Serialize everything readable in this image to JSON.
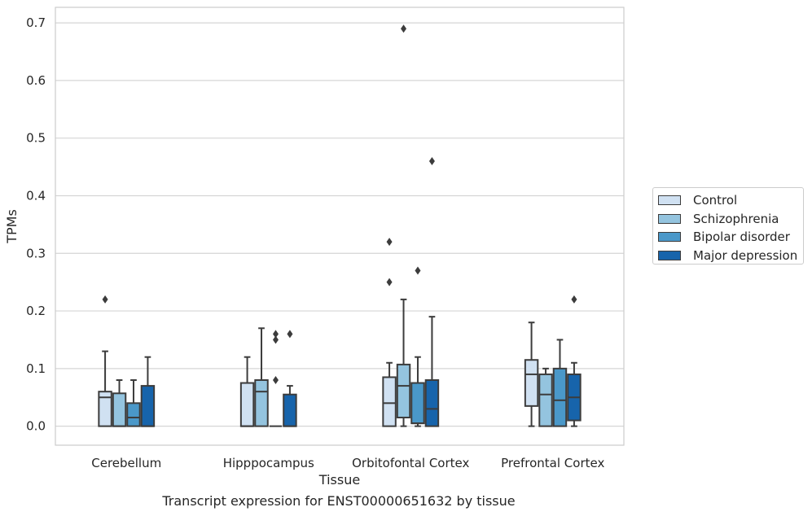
{
  "chart_data": {
    "type": "box",
    "title": "",
    "xlabel": "Tissue",
    "ylabel": "TPMs",
    "caption": "Transcript expression for ENST00000651632 by tissue",
    "ylim": [
      -0.033,
      0.727
    ],
    "yticks": [
      0.0,
      0.1,
      0.2,
      0.3,
      0.4,
      0.5,
      0.6,
      0.7
    ],
    "ytick_labels": [
      "0.0",
      "0.1",
      "0.2",
      "0.3",
      "0.4",
      "0.5",
      "0.6",
      "0.7"
    ],
    "grid": "horizontal",
    "legend_position": "right",
    "categories": [
      "Cerebellum",
      "Hipppocampus",
      "Orbitofontal Cortex",
      "Prefrontal Cortex"
    ],
    "series": [
      {
        "name": "Control",
        "color": "#d0e1f2",
        "boxes": [
          {
            "whislo": 0.0,
            "q1": 0.0,
            "med": 0.05,
            "q3": 0.06,
            "whishi": 0.13,
            "fliers": [
              0.22
            ]
          },
          {
            "whislo": 0.0,
            "q1": 0.0,
            "med": 0.0,
            "q3": 0.075,
            "whishi": 0.12,
            "fliers": []
          },
          {
            "whislo": 0.0,
            "q1": 0.0,
            "med": 0.04,
            "q3": 0.085,
            "whishi": 0.11,
            "fliers": [
              0.25,
              0.32
            ]
          },
          {
            "whislo": 0.0,
            "q1": 0.035,
            "med": 0.09,
            "q3": 0.115,
            "whishi": 0.18,
            "fliers": []
          }
        ]
      },
      {
        "name": "Schizophrenia",
        "color": "#94c4df",
        "boxes": [
          {
            "whislo": 0.0,
            "q1": 0.0,
            "med": 0.0,
            "q3": 0.057,
            "whishi": 0.08,
            "fliers": []
          },
          {
            "whislo": 0.0,
            "q1": 0.0,
            "med": 0.06,
            "q3": 0.08,
            "whishi": 0.17,
            "fliers": []
          },
          {
            "whislo": 0.0,
            "q1": 0.015,
            "med": 0.07,
            "q3": 0.107,
            "whishi": 0.22,
            "fliers": [
              0.69
            ]
          },
          {
            "whislo": 0.0,
            "q1": 0.0,
            "med": 0.055,
            "q3": 0.09,
            "whishi": 0.1,
            "fliers": []
          }
        ]
      },
      {
        "name": "Bipolar disorder",
        "color": "#4a98c9",
        "boxes": [
          {
            "whislo": 0.0,
            "q1": 0.0,
            "med": 0.015,
            "q3": 0.04,
            "whishi": 0.08,
            "fliers": []
          },
          {
            "whislo": 0.0,
            "q1": 0.0,
            "med": 0.0,
            "q3": 0.0,
            "whishi": 0.0,
            "fliers": [
              0.08,
              0.15,
              0.16
            ]
          },
          {
            "whislo": 0.0,
            "q1": 0.005,
            "med": 0.005,
            "q3": 0.075,
            "whishi": 0.12,
            "fliers": [
              0.27
            ]
          },
          {
            "whislo": 0.0,
            "q1": 0.0,
            "med": 0.045,
            "q3": 0.1,
            "whishi": 0.15,
            "fliers": []
          }
        ]
      },
      {
        "name": "Major depression",
        "color": "#1764ab",
        "boxes": [
          {
            "whislo": 0.0,
            "q1": 0.0,
            "med": 0.0,
            "q3": 0.07,
            "whishi": 0.12,
            "fliers": []
          },
          {
            "whislo": 0.0,
            "q1": 0.0,
            "med": 0.0,
            "q3": 0.055,
            "whishi": 0.07,
            "fliers": [
              0.16
            ]
          },
          {
            "whislo": 0.0,
            "q1": 0.0,
            "med": 0.03,
            "q3": 0.08,
            "whishi": 0.19,
            "fliers": [
              0.46
            ]
          },
          {
            "whislo": 0.0,
            "q1": 0.01,
            "med": 0.05,
            "q3": 0.09,
            "whishi": 0.11,
            "fliers": [
              0.22
            ]
          }
        ]
      }
    ]
  }
}
